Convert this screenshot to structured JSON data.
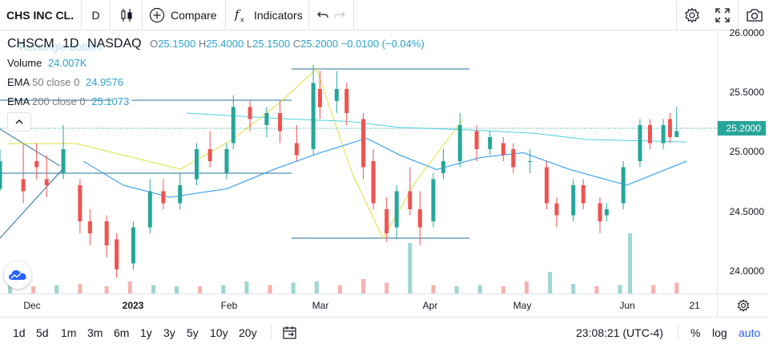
{
  "toolbar": {
    "symbol": "CHS INC CL.",
    "interval": "D",
    "compare_label": "Compare",
    "indicators_label": "Indicators"
  },
  "legend": {
    "ticker": "CHSCM",
    "interval": "1D",
    "exchange": "NASDAQ",
    "open_key": "O",
    "open": "25.1500",
    "high_key": "H",
    "high": "25.4000",
    "low_key": "L",
    "low": "25.1500",
    "close_key": "C",
    "close": "25.2000",
    "change": "−0.0100 (−0.04%)",
    "volume_name": "Volume",
    "volume_value": "24.007K",
    "ema50_name": "EMA",
    "ema50_params": "50 close 0",
    "ema50_value": "24.9576",
    "ema200_name": "EMA",
    "ema200_params": "200 close 0",
    "ema200_value": "25.1073",
    "drawing_label": "Rectangle Bottom"
  },
  "price_axis": {
    "labels": [
      "26.0000",
      "25.5000",
      "25.0000",
      "24.5000",
      "24.0000"
    ],
    "current_price": "25.2000"
  },
  "time_axis": {
    "labels": [
      "Dec",
      "2023",
      "Feb",
      "Mar",
      "Apr",
      "May",
      "Jun",
      "21"
    ]
  },
  "bottom": {
    "ranges": [
      "1d",
      "5d",
      "1m",
      "3m",
      "6m",
      "1y",
      "3y",
      "5y",
      "10y",
      "20y"
    ],
    "clock": "23:08:21 (UTC-4)",
    "percent": "%",
    "log": "log",
    "auto": "auto"
  },
  "colors": {
    "up": "#26a69a",
    "down": "#ef5350",
    "ema50": "#2196f3",
    "ema200": "#4dd0e1",
    "accent": "#2962ff"
  },
  "chart_data": {
    "type": "candlestick",
    "ylim": [
      23.85,
      26.05
    ],
    "yticks": [
      24.0,
      24.5,
      25.0,
      25.5,
      26.0
    ],
    "x_range": [
      "2022-11-25",
      "2023-06-24"
    ],
    "candles": [
      {
        "d": "2022-11-25",
        "o": 24.72,
        "h": 25.05,
        "l": 24.7,
        "c": 24.95
      },
      {
        "d": "2022-12-02",
        "o": 24.8,
        "h": 25.1,
        "l": 24.6,
        "c": 24.7
      },
      {
        "d": "2022-12-06",
        "o": 24.95,
        "h": 25.1,
        "l": 24.8,
        "c": 24.9
      },
      {
        "d": "2022-12-09",
        "o": 24.8,
        "h": 25.0,
        "l": 24.65,
        "c": 24.75
      },
      {
        "d": "2022-12-14",
        "o": 24.85,
        "h": 25.25,
        "l": 24.8,
        "c": 25.05
      },
      {
        "d": "2022-12-19",
        "o": 24.75,
        "h": 24.8,
        "l": 24.35,
        "c": 24.45
      },
      {
        "d": "2022-12-22",
        "o": 24.45,
        "h": 24.55,
        "l": 24.25,
        "c": 24.35
      },
      {
        "d": "2022-12-27",
        "o": 24.45,
        "h": 24.5,
        "l": 24.15,
        "c": 24.25
      },
      {
        "d": "2022-12-30",
        "o": 24.3,
        "h": 24.35,
        "l": 23.98,
        "c": 24.05
      },
      {
        "d": "2023-01-04",
        "o": 24.1,
        "h": 24.45,
        "l": 24.05,
        "c": 24.4
      },
      {
        "d": "2023-01-09",
        "o": 24.4,
        "h": 24.8,
        "l": 24.35,
        "c": 24.7
      },
      {
        "d": "2023-01-13",
        "o": 24.7,
        "h": 24.8,
        "l": 24.55,
        "c": 24.6
      },
      {
        "d": "2023-01-18",
        "o": 24.6,
        "h": 24.85,
        "l": 24.55,
        "c": 24.75
      },
      {
        "d": "2023-01-23",
        "o": 24.8,
        "h": 25.1,
        "l": 24.75,
        "c": 25.05
      },
      {
        "d": "2023-01-27",
        "o": 25.05,
        "h": 25.2,
        "l": 24.9,
        "c": 24.95
      },
      {
        "d": "2023-02-01",
        "o": 24.85,
        "h": 25.1,
        "l": 24.8,
        "c": 25.05
      },
      {
        "d": "2023-02-03",
        "o": 25.1,
        "h": 25.5,
        "l": 25.05,
        "c": 25.4
      },
      {
        "d": "2023-02-08",
        "o": 25.4,
        "h": 25.45,
        "l": 25.2,
        "c": 25.3
      },
      {
        "d": "2023-02-13",
        "o": 25.25,
        "h": 25.4,
        "l": 25.15,
        "c": 25.35
      },
      {
        "d": "2023-02-17",
        "o": 25.35,
        "h": 25.45,
        "l": 25.1,
        "c": 25.2
      },
      {
        "d": "2023-02-22",
        "o": 25.1,
        "h": 25.25,
        "l": 24.95,
        "c": 25.0
      },
      {
        "d": "2023-02-27",
        "o": 25.05,
        "h": 25.75,
        "l": 25.0,
        "c": 25.6
      },
      {
        "d": "2023-03-01",
        "o": 25.55,
        "h": 25.7,
        "l": 25.3,
        "c": 25.4
      },
      {
        "d": "2023-03-06",
        "o": 25.45,
        "h": 25.7,
        "l": 25.35,
        "c": 25.55
      },
      {
        "d": "2023-03-09",
        "o": 25.55,
        "h": 25.6,
        "l": 25.25,
        "c": 25.35
      },
      {
        "d": "2023-03-14",
        "o": 25.3,
        "h": 25.35,
        "l": 24.8,
        "c": 24.9
      },
      {
        "d": "2023-03-17",
        "o": 24.95,
        "h": 25.05,
        "l": 24.55,
        "c": 24.6
      },
      {
        "d": "2023-03-21",
        "o": 24.55,
        "h": 24.65,
        "l": 24.28,
        "c": 24.35
      },
      {
        "d": "2023-03-24",
        "o": 24.4,
        "h": 24.75,
        "l": 24.3,
        "c": 24.7
      },
      {
        "d": "2023-03-28",
        "o": 24.7,
        "h": 24.9,
        "l": 24.5,
        "c": 24.55
      },
      {
        "d": "2023-03-31",
        "o": 24.55,
        "h": 24.7,
        "l": 24.25,
        "c": 24.4
      },
      {
        "d": "2023-04-04",
        "o": 24.45,
        "h": 24.85,
        "l": 24.4,
        "c": 24.8
      },
      {
        "d": "2023-04-07",
        "o": 24.85,
        "h": 25.05,
        "l": 24.8,
        "c": 24.95
      },
      {
        "d": "2023-04-12",
        "o": 24.95,
        "h": 25.35,
        "l": 24.9,
        "c": 25.25
      },
      {
        "d": "2023-04-17",
        "o": 25.2,
        "h": 25.25,
        "l": 24.95,
        "c": 25.05
      },
      {
        "d": "2023-04-21",
        "o": 25.05,
        "h": 25.2,
        "l": 25.0,
        "c": 25.15
      },
      {
        "d": "2023-04-25",
        "o": 25.1,
        "h": 25.15,
        "l": 24.95,
        "c": 25.0
      },
      {
        "d": "2023-04-28",
        "o": 25.05,
        "h": 25.1,
        "l": 24.85,
        "c": 24.9
      },
      {
        "d": "2023-05-03",
        "o": 24.95,
        "h": 25.05,
        "l": 24.85,
        "c": 24.95
      },
      {
        "d": "2023-05-08",
        "o": 24.9,
        "h": 24.95,
        "l": 24.55,
        "c": 24.6
      },
      {
        "d": "2023-05-11",
        "o": 24.6,
        "h": 24.65,
        "l": 24.4,
        "c": 24.5
      },
      {
        "d": "2023-05-16",
        "o": 24.5,
        "h": 24.8,
        "l": 24.45,
        "c": 24.75
      },
      {
        "d": "2023-05-19",
        "o": 24.75,
        "h": 24.8,
        "l": 24.55,
        "c": 24.6
      },
      {
        "d": "2023-05-24",
        "o": 24.6,
        "h": 24.65,
        "l": 24.35,
        "c": 24.45
      },
      {
        "d": "2023-05-26",
        "o": 24.5,
        "h": 24.6,
        "l": 24.45,
        "c": 24.55
      },
      {
        "d": "2023-05-31",
        "o": 24.6,
        "h": 24.95,
        "l": 24.55,
        "c": 24.9
      },
      {
        "d": "2023-06-05",
        "o": 24.95,
        "h": 25.3,
        "l": 24.9,
        "c": 25.25
      },
      {
        "d": "2023-06-08",
        "o": 25.25,
        "h": 25.3,
        "l": 25.05,
        "c": 25.1
      },
      {
        "d": "2023-06-12",
        "o": 25.1,
        "h": 25.3,
        "l": 25.05,
        "c": 25.25
      },
      {
        "d": "2023-06-14",
        "o": 25.3,
        "h": 25.35,
        "l": 25.1,
        "c": 25.15
      },
      {
        "d": "2023-06-16",
        "o": 25.15,
        "h": 25.4,
        "l": 25.15,
        "c": 25.2
      }
    ],
    "ema50": [
      {
        "d": "2022-12-20",
        "v": 24.95
      },
      {
        "d": "2023-01-01",
        "v": 24.75
      },
      {
        "d": "2023-01-15",
        "v": 24.65
      },
      {
        "d": "2023-02-01",
        "v": 24.72
      },
      {
        "d": "2023-02-15",
        "v": 24.88
      },
      {
        "d": "2023-03-01",
        "v": 25.02
      },
      {
        "d": "2023-03-15",
        "v": 25.14
      },
      {
        "d": "2023-03-25",
        "v": 25.0
      },
      {
        "d": "2023-04-05",
        "v": 24.88
      },
      {
        "d": "2023-04-18",
        "v": 24.98
      },
      {
        "d": "2023-05-01",
        "v": 25.02
      },
      {
        "d": "2023-05-15",
        "v": 24.88
      },
      {
        "d": "2023-06-01",
        "v": 24.75
      },
      {
        "d": "2023-06-19",
        "v": 24.95
      }
    ],
    "ema200": [
      {
        "d": "2023-01-20",
        "v": 25.35
      },
      {
        "d": "2023-02-20",
        "v": 25.3
      },
      {
        "d": "2023-03-10",
        "v": 25.28
      },
      {
        "d": "2023-03-25",
        "v": 25.23
      },
      {
        "d": "2023-04-15",
        "v": 25.21
      },
      {
        "d": "2023-05-05",
        "v": 25.18
      },
      {
        "d": "2023-05-20",
        "v": 25.13
      },
      {
        "d": "2023-06-19",
        "v": 25.11
      }
    ],
    "volume": [
      {
        "d": "2022-11-28",
        "v": 0.6,
        "up": true
      },
      {
        "d": "2022-12-05",
        "v": 0.3,
        "up": false
      },
      {
        "d": "2022-12-12",
        "v": 0.35,
        "up": true
      },
      {
        "d": "2022-12-19",
        "v": 0.4,
        "up": false
      },
      {
        "d": "2022-12-27",
        "v": 0.3,
        "up": false
      },
      {
        "d": "2023-01-03",
        "v": 0.5,
        "up": false
      },
      {
        "d": "2023-01-10",
        "v": 0.35,
        "up": true
      },
      {
        "d": "2023-01-17",
        "v": 0.3,
        "up": true
      },
      {
        "d": "2023-01-24",
        "v": 0.3,
        "up": false
      },
      {
        "d": "2023-01-31",
        "v": 0.35,
        "up": true
      },
      {
        "d": "2023-02-07",
        "v": 0.5,
        "up": true
      },
      {
        "d": "2023-02-14",
        "v": 0.35,
        "up": false
      },
      {
        "d": "2023-02-21",
        "v": 0.45,
        "up": true
      },
      {
        "d": "2023-02-28",
        "v": 0.5,
        "up": true
      },
      {
        "d": "2023-03-07",
        "v": 0.35,
        "up": false
      },
      {
        "d": "2023-03-14",
        "v": 0.6,
        "up": false
      },
      {
        "d": "2023-03-21",
        "v": 0.45,
        "up": false
      },
      {
        "d": "2023-03-28",
        "v": 2.1,
        "up": true
      },
      {
        "d": "2023-04-04",
        "v": 0.35,
        "up": false
      },
      {
        "d": "2023-04-11",
        "v": 0.3,
        "up": true
      },
      {
        "d": "2023-04-18",
        "v": 0.35,
        "up": true
      },
      {
        "d": "2023-04-25",
        "v": 0.3,
        "up": false
      },
      {
        "d": "2023-05-02",
        "v": 0.5,
        "up": false
      },
      {
        "d": "2023-05-09",
        "v": 0.9,
        "up": true
      },
      {
        "d": "2023-05-16",
        "v": 0.4,
        "up": true
      },
      {
        "d": "2023-05-23",
        "v": 0.3,
        "up": false
      },
      {
        "d": "2023-05-30",
        "v": 0.35,
        "up": true
      },
      {
        "d": "2023-06-02",
        "v": 2.5,
        "up": true
      },
      {
        "d": "2023-06-09",
        "v": 0.35,
        "up": false
      },
      {
        "d": "2023-06-16",
        "v": 0.45,
        "up": false
      }
    ]
  }
}
